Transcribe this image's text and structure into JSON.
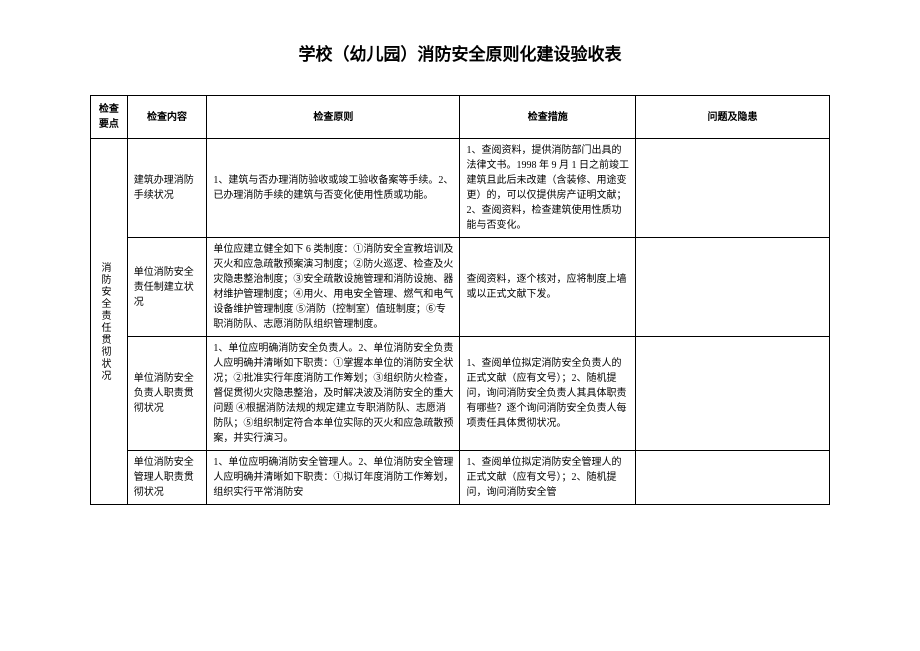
{
  "title": "学校（幼儿园）消防安全原则化建设验收表",
  "headers": {
    "col1": "检查要点",
    "col2": "检查内容",
    "col3": "检查原则",
    "col4": "检查措施",
    "col5": "问题及隐患"
  },
  "rows": [
    {
      "category": "消防安全责任贯彻状况",
      "content": "建筑办理消防手续状况",
      "principle": "1、建筑与否办理消防验收或竣工验收备案等手续。2、已办理消防手续的建筑与否变化使用性质或功能。",
      "measure": "1、查阅资料，提供消防部门出具的法律文书。1998 年 9 月 1 日之前竣工建筑且此后未改建（含装修、用途变更）的，可以仅提供房产证明文献；2、查阅资料，检查建筑使用性质功能与否变化。",
      "issue": ""
    },
    {
      "content": "单位消防安全责任制建立状况",
      "principle": "单位应建立健全如下 6 类制度：①消防安全宣教培训及灭火和应急疏散预案演习制度；②防火巡逻、检查及火灾隐患整治制度；③安全疏散设施管理和消防设施、器材维护管理制度；④用火、用电安全管理、燃气和电气设备维护管理制度 ⑤消防（控制室）值班制度；⑥专职消防队、志愿消防队组织管理制度。",
      "measure": "查阅资料，逐个核对，应将制度上墙或以正式文献下发。",
      "issue": ""
    },
    {
      "content": "单位消防安全负责人职责贯彻状况",
      "principle": "1、单位应明确消防安全负责人。2、单位消防安全负责人应明确并清晰如下职责：①掌握本单位的消防安全状况；②批准实行年度消防工作筹划；③组织防火检查，督促贯彻火灾隐患整治，及时解决波及消防安全的重大问题 ④根据消防法规的规定建立专职消防队、志愿消防队；⑤组织制定符合本单位实际的灭火和应急疏散预案，并实行演习。",
      "measure": "1、查阅单位拟定消防安全负责人的正式文献（应有文号）；2、随机提问，询问消防安全负责人其具体职责有哪些？逐个询问消防安全负责人每项责任具体贯彻状况。",
      "issue": ""
    },
    {
      "content": "单位消防安全管理人职责贯彻状况",
      "principle": "1、单位应明确消防安全管理人。2、单位消防安全管理人应明确并清晰如下职责：①拟订年度消防工作筹划，组织实行平常消防安",
      "measure": "1、查阅单位拟定消防安全管理人的正式文献（应有文号）；2、随机提问，询问消防安全管",
      "issue": ""
    }
  ]
}
